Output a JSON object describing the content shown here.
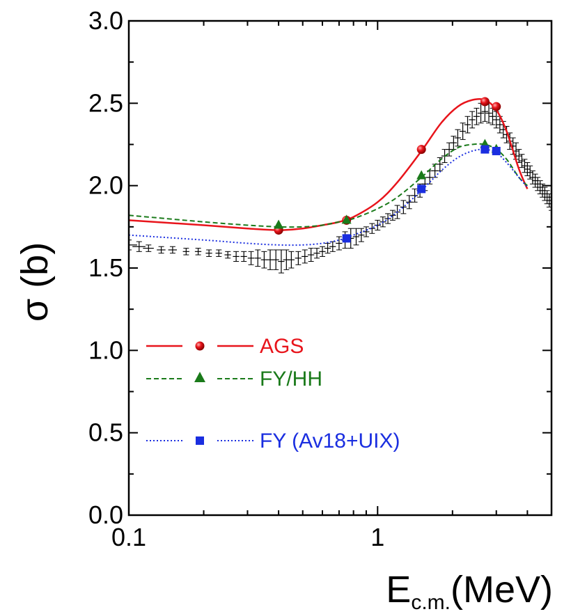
{
  "chart_data": {
    "type": "line",
    "title": "",
    "xlabel_main": "E",
    "xlabel_sub": "c.m.",
    "xlabel_unit": "(MeV)",
    "ylabel": "σ (b)",
    "x_scale": "log",
    "xlim": [
      0.1,
      5.0
    ],
    "ylim": [
      0.0,
      3.0
    ],
    "x_ticks": [
      {
        "value": 0.1,
        "label": "0.1"
      },
      {
        "value": 1,
        "label": "1"
      }
    ],
    "y_ticks": [
      {
        "value": 0.0,
        "label": "0.0"
      },
      {
        "value": 0.5,
        "label": "0.5"
      },
      {
        "value": 1.0,
        "label": "1.0"
      },
      {
        "value": 1.5,
        "label": "1.5"
      },
      {
        "value": 2.0,
        "label": "2.0"
      },
      {
        "value": 2.5,
        "label": "2.5"
      },
      {
        "value": 3.0,
        "label": "3.0"
      }
    ],
    "grid": false,
    "legend_position": "left",
    "series": [
      {
        "name": "AGS",
        "color": "#e8141b",
        "line_style": "solid",
        "marker": "circle",
        "curve": {
          "x": [
            0.1,
            0.2,
            0.3,
            0.4,
            0.5,
            0.6,
            0.7,
            0.8,
            1.0,
            1.2,
            1.5,
            1.8,
            2.1,
            2.4,
            2.7,
            3.0,
            3.3,
            3.7,
            4.0
          ],
          "y": [
            1.79,
            1.76,
            1.74,
            1.73,
            1.74,
            1.76,
            1.78,
            1.81,
            1.9,
            2.02,
            2.21,
            2.38,
            2.48,
            2.52,
            2.52,
            2.46,
            2.33,
            2.1,
            1.98
          ]
        },
        "points": {
          "x": [
            0.4,
            0.75,
            1.5,
            2.7,
            3.0
          ],
          "y": [
            1.73,
            1.79,
            2.22,
            2.51,
            2.48
          ]
        }
      },
      {
        "name": "FY/HH",
        "color": "#1a7a1a",
        "line_style": "dashed",
        "marker": "triangle",
        "curve": {
          "x": [
            0.1,
            0.2,
            0.3,
            0.4,
            0.5,
            0.6,
            0.7,
            0.8,
            1.0,
            1.2,
            1.5,
            1.8,
            2.1,
            2.4,
            2.7,
            3.0,
            3.3,
            3.7,
            4.0
          ],
          "y": [
            1.82,
            1.78,
            1.76,
            1.75,
            1.75,
            1.76,
            1.78,
            1.8,
            1.86,
            1.93,
            2.05,
            2.16,
            2.23,
            2.25,
            2.25,
            2.22,
            2.16,
            2.05,
            2.0
          ]
        },
        "points": {
          "x": [
            0.4,
            0.75,
            1.5,
            2.7,
            3.0
          ],
          "y": [
            1.76,
            1.79,
            2.06,
            2.25,
            2.22
          ]
        }
      },
      {
        "name": "FY (Av18+UIX)",
        "color": "#1a2ee0",
        "line_style": "dotted",
        "marker": "square",
        "curve": {
          "x": [
            0.1,
            0.2,
            0.3,
            0.4,
            0.5,
            0.6,
            0.7,
            0.8,
            1.0,
            1.2,
            1.5,
            1.8,
            2.1,
            2.4,
            2.7,
            3.0,
            3.3,
            3.7,
            4.0
          ],
          "y": [
            1.7,
            1.67,
            1.65,
            1.64,
            1.64,
            1.65,
            1.67,
            1.7,
            1.76,
            1.84,
            1.97,
            2.09,
            2.17,
            2.21,
            2.22,
            2.2,
            2.14,
            2.05,
            1.99
          ]
        },
        "points": {
          "x": [
            0.75,
            1.5,
            2.7,
            3.0
          ],
          "y": [
            1.68,
            1.98,
            2.22,
            2.21
          ]
        }
      }
    ],
    "experiment": {
      "color": "#000000",
      "marker": "plus-with-errorbars",
      "x": [
        0.1,
        0.11,
        0.12,
        0.135,
        0.15,
        0.17,
        0.19,
        0.21,
        0.23,
        0.25,
        0.27,
        0.29,
        0.31,
        0.33,
        0.35,
        0.37,
        0.39,
        0.41,
        0.43,
        0.45,
        0.48,
        0.51,
        0.54,
        0.57,
        0.6,
        0.63,
        0.66,
        0.7,
        0.74,
        0.78,
        0.82,
        0.86,
        0.9,
        0.95,
        1.0,
        1.05,
        1.1,
        1.15,
        1.2,
        1.27,
        1.34,
        1.41,
        1.48,
        1.55,
        1.62,
        1.7,
        1.78,
        1.86,
        1.94,
        2.02,
        2.1,
        2.2,
        2.3,
        2.4,
        2.5,
        2.6,
        2.7,
        2.8,
        2.9,
        3.0,
        3.1,
        3.2,
        3.3,
        3.4,
        3.5,
        3.6,
        3.7,
        3.8,
        3.9,
        4.0,
        4.1,
        4.2,
        4.3,
        4.4,
        4.5,
        4.6,
        4.7,
        4.8,
        4.9,
        5.0
      ],
      "y": [
        1.64,
        1.63,
        1.62,
        1.61,
        1.61,
        1.6,
        1.6,
        1.59,
        1.59,
        1.58,
        1.57,
        1.57,
        1.56,
        1.56,
        1.55,
        1.55,
        1.55,
        1.54,
        1.55,
        1.55,
        1.56,
        1.57,
        1.58,
        1.59,
        1.6,
        1.62,
        1.63,
        1.65,
        1.67,
        1.68,
        1.69,
        1.7,
        1.72,
        1.74,
        1.76,
        1.78,
        1.8,
        1.82,
        1.84,
        1.87,
        1.9,
        1.94,
        1.97,
        2.01,
        2.05,
        2.09,
        2.13,
        2.18,
        2.22,
        2.26,
        2.29,
        2.33,
        2.37,
        2.4,
        2.42,
        2.44,
        2.45,
        2.44,
        2.42,
        2.4,
        2.37,
        2.34,
        2.31,
        2.27,
        2.24,
        2.21,
        2.18,
        2.15,
        2.12,
        2.1,
        2.08,
        2.05,
        2.03,
        2.01,
        1.99,
        1.97,
        1.95,
        1.93,
        1.91,
        1.89
      ],
      "yerr": [
        0.03,
        0.03,
        0.02,
        0.02,
        0.02,
        0.02,
        0.02,
        0.02,
        0.02,
        0.02,
        0.03,
        0.03,
        0.04,
        0.05,
        0.05,
        0.06,
        0.06,
        0.07,
        0.06,
        0.05,
        0.04,
        0.04,
        0.04,
        0.03,
        0.03,
        0.03,
        0.03,
        0.04,
        0.05,
        0.06,
        0.05,
        0.04,
        0.03,
        0.03,
        0.03,
        0.03,
        0.03,
        0.03,
        0.04,
        0.04,
        0.04,
        0.04,
        0.04,
        0.04,
        0.04,
        0.04,
        0.04,
        0.04,
        0.04,
        0.04,
        0.05,
        0.05,
        0.05,
        0.05,
        0.05,
        0.06,
        0.06,
        0.06,
        0.05,
        0.05,
        0.05,
        0.05,
        0.05,
        0.05,
        0.05,
        0.05,
        0.04,
        0.04,
        0.04,
        0.04,
        0.04,
        0.04,
        0.04,
        0.04,
        0.04,
        0.04,
        0.04,
        0.04,
        0.04,
        0.04
      ],
      "xerr_frac": [
        0.08,
        0.06,
        0.05,
        0.04,
        0.04,
        0.03,
        0.03,
        0.03,
        0.03,
        0.03,
        0.03,
        0.03,
        0.03,
        0.03,
        0.03,
        0.03,
        0.03,
        0.03,
        0.03,
        0.03,
        0.03,
        0.03,
        0.03,
        0.03,
        0.03,
        0.03,
        0.03,
        0.03,
        0.03,
        0.03,
        0.03,
        0.03,
        0.03,
        0.03,
        0.03,
        0.03,
        0.03,
        0.03,
        0.03,
        0.03,
        0.03,
        0.03,
        0.03,
        0.03,
        0.03,
        0.03,
        0.03,
        0.03,
        0.03,
        0.03,
        0.03,
        0.03,
        0.03,
        0.03,
        0.03,
        0.03,
        0.03,
        0.03,
        0.03,
        0.03,
        0.03,
        0.03,
        0.03,
        0.03,
        0.03,
        0.03,
        0.03,
        0.03,
        0.03,
        0.03,
        0.03,
        0.03,
        0.03,
        0.03,
        0.03,
        0.03,
        0.03,
        0.03,
        0.03,
        0.03
      ]
    }
  }
}
